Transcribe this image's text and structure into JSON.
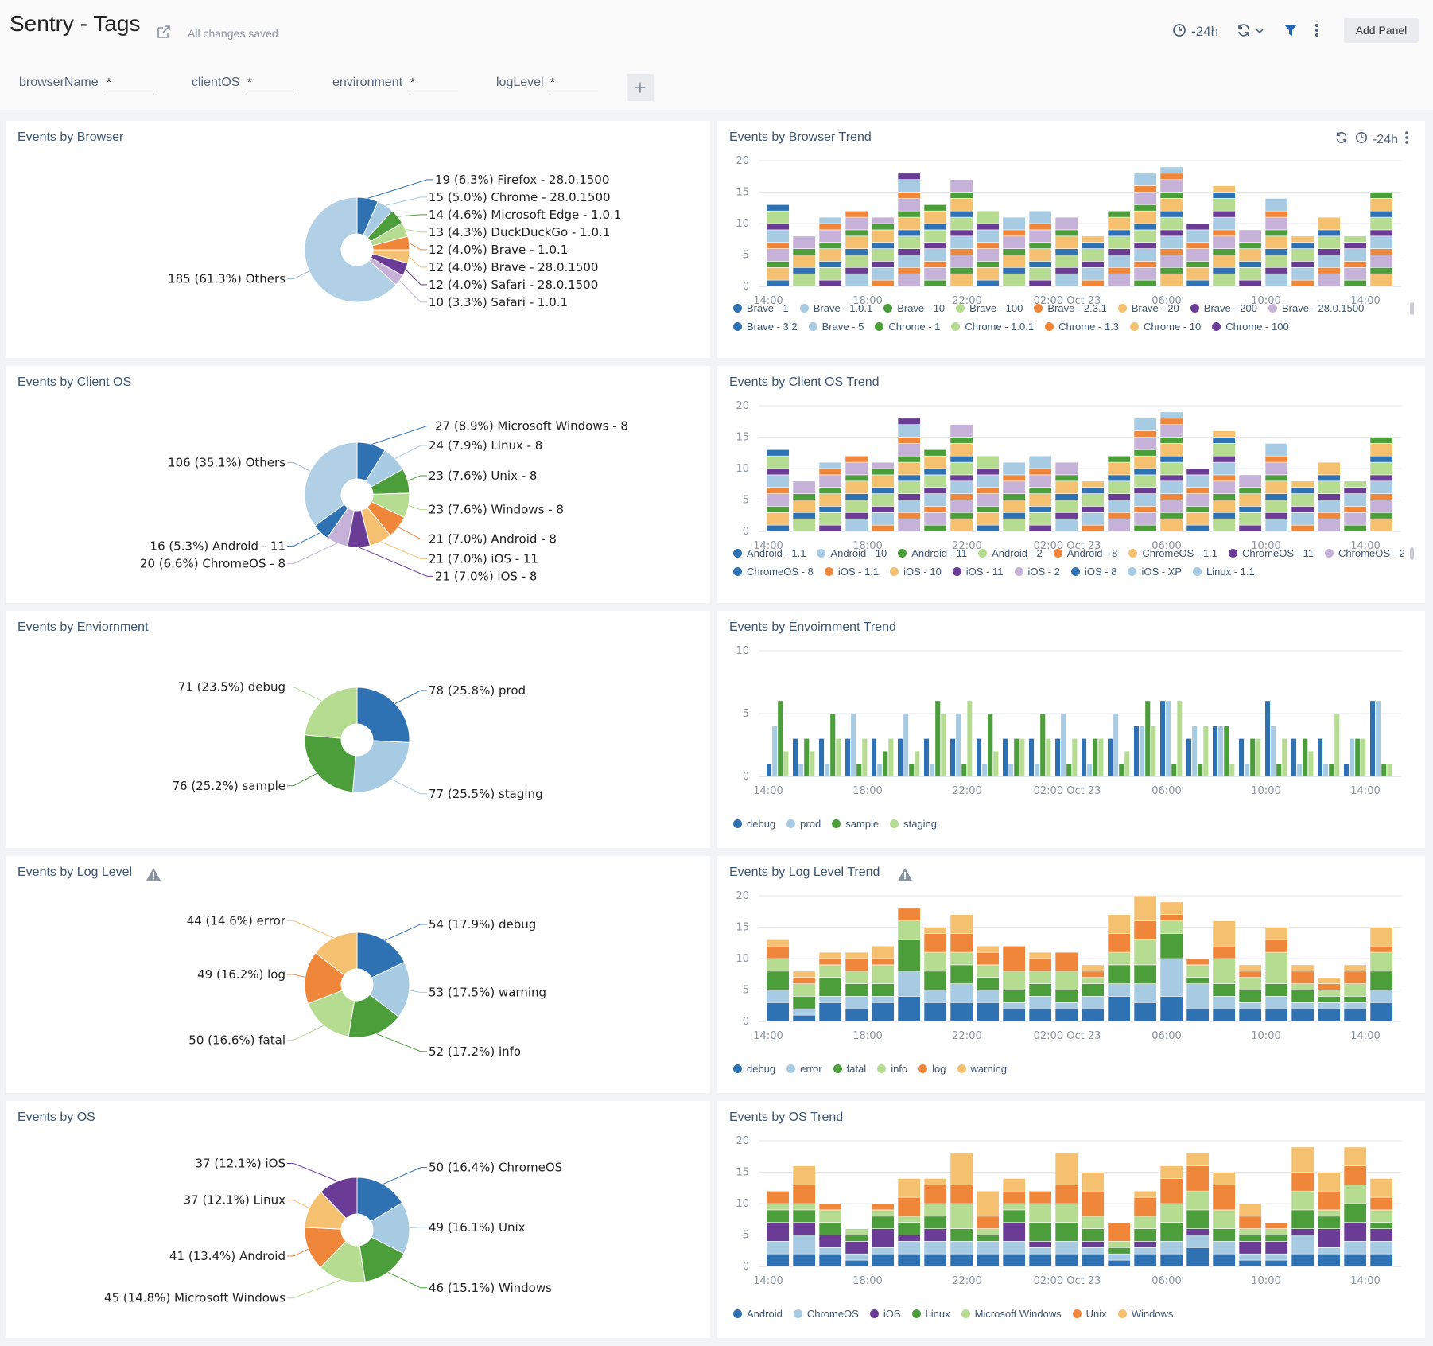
{
  "header": {
    "title": "Sentry - Tags",
    "saved_status": "All changes saved",
    "time_range": "-24h",
    "add_panel_label": "Add Panel",
    "icons": [
      "share-icon",
      "clock-icon",
      "refresh-icon",
      "chevron-down-icon",
      "filter-icon",
      "more-vertical-icon"
    ]
  },
  "filters": [
    {
      "label": "browserName",
      "value": "*"
    },
    {
      "label": "clientOS",
      "value": "*"
    },
    {
      "label": "environment",
      "value": "*"
    },
    {
      "label": "logLevel",
      "value": "*"
    }
  ],
  "colors": {
    "dark_blue": "#2f72b4",
    "light_blue": "#a7cbe3",
    "dark_green": "#4c9e3a",
    "light_green": "#b5dc91",
    "orange": "#f0863a",
    "light_orange": "#f5c070",
    "purple": "#6a3c96",
    "lilac": "#c6b1d8"
  },
  "panels": {
    "browser": {
      "title": "Events by Browser"
    },
    "browser_trend": {
      "title": "Events by Browser Trend",
      "time_range": "-24h"
    },
    "client_os": {
      "title": "Events by Client OS"
    },
    "client_os_trend": {
      "title": "Events by Client OS Trend"
    },
    "environment": {
      "title": "Events by Enviornment"
    },
    "environment_trend": {
      "title": "Events by Envoirnment Trend"
    },
    "log_level": {
      "title": "Events by Log Level"
    },
    "log_level_trend": {
      "title": "Events by Log Level Trend"
    },
    "os": {
      "title": "Events by OS"
    },
    "os_trend": {
      "title": "Events by OS Trend"
    }
  },
  "chart_data": [
    {
      "id": "browser_pie",
      "type": "pie",
      "donut": true,
      "slices": [
        {
          "label": "19 (6.3%) Firefox - 28.0.1500",
          "value": 19,
          "color": "#2f72b4"
        },
        {
          "label": "15 (5.0%) Chrome - 28.0.1500",
          "value": 15,
          "color": "#a7cbe3"
        },
        {
          "label": "14 (4.6%) Microsoft Edge - 1.0.1",
          "value": 14,
          "color": "#4c9e3a"
        },
        {
          "label": "13 (4.3%) DuckDuckGo - 1.0.1",
          "value": 13,
          "color": "#b5dc91"
        },
        {
          "label": "12 (4.0%) Brave - 1.0.1",
          "value": 12,
          "color": "#f0863a"
        },
        {
          "label": "12 (4.0%) Brave - 28.0.1500",
          "value": 12,
          "color": "#f5c070"
        },
        {
          "label": "12 (4.0%) Safari - 28.0.1500",
          "value": 12,
          "color": "#6a3c96"
        },
        {
          "label": "10 (3.3%) Safari - 1.0.1",
          "value": 10,
          "color": "#c6b1d8"
        },
        {
          "label": "185 (61.3%) Others",
          "value": 185,
          "color": "#b1d0e6"
        }
      ]
    },
    {
      "id": "client_os_pie",
      "type": "pie",
      "donut": true,
      "slices": [
        {
          "label": "27 (8.9%) Microsoft Windows - 8",
          "value": 27,
          "color": "#2f72b4"
        },
        {
          "label": "24 (7.9%) Linux - 8",
          "value": 24,
          "color": "#a7cbe3"
        },
        {
          "label": "23 (7.6%) Unix - 8",
          "value": 23,
          "color": "#4c9e3a"
        },
        {
          "label": "23 (7.6%) Windows - 8",
          "value": 23,
          "color": "#b5dc91"
        },
        {
          "label": "21 (7.0%) Android - 8",
          "value": 21,
          "color": "#f0863a"
        },
        {
          "label": "21 (7.0%) iOS - 11",
          "value": 21,
          "color": "#f5c070"
        },
        {
          "label": "21 (7.0%) iOS - 8",
          "value": 21,
          "color": "#6a3c96"
        },
        {
          "label": "20 (6.6%) ChromeOS - 8",
          "value": 20,
          "color": "#c6b1d8"
        },
        {
          "label": "16 (5.3%) Android - 11",
          "value": 16,
          "color": "#2f72b4"
        },
        {
          "label": "106 (35.1%) Others",
          "value": 106,
          "color": "#b1d0e6"
        }
      ]
    },
    {
      "id": "environment_pie",
      "type": "pie",
      "donut": true,
      "slices": [
        {
          "label": "78 (25.8%) prod",
          "value": 78,
          "color": "#2f72b4"
        },
        {
          "label": "77 (25.5%) staging",
          "value": 77,
          "color": "#a7cbe3"
        },
        {
          "label": "76 (25.2%) sample",
          "value": 76,
          "color": "#4c9e3a"
        },
        {
          "label": "71 (23.5%) debug",
          "value": 71,
          "color": "#b5dc91"
        }
      ]
    },
    {
      "id": "log_level_pie",
      "type": "pie",
      "donut": true,
      "slices": [
        {
          "label": "54 (17.9%) debug",
          "value": 54,
          "color": "#2f72b4"
        },
        {
          "label": "53 (17.5%) warning",
          "value": 53,
          "color": "#a7cbe3"
        },
        {
          "label": "52 (17.2%) info",
          "value": 52,
          "color": "#4c9e3a"
        },
        {
          "label": "50 (16.6%) fatal",
          "value": 50,
          "color": "#b5dc91"
        },
        {
          "label": "49 (16.2%) log",
          "value": 49,
          "color": "#f0863a"
        },
        {
          "label": "44 (14.6%) error",
          "value": 44,
          "color": "#f5c070"
        }
      ]
    },
    {
      "id": "os_pie",
      "type": "pie",
      "donut": true,
      "slices": [
        {
          "label": "50 (16.4%) ChromeOS",
          "value": 50,
          "color": "#2f72b4"
        },
        {
          "label": "49 (16.1%) Unix",
          "value": 49,
          "color": "#a7cbe3"
        },
        {
          "label": "46 (15.1%) Windows",
          "value": 46,
          "color": "#4c9e3a"
        },
        {
          "label": "45 (14.8%) Microsoft Windows",
          "value": 45,
          "color": "#b5dc91"
        },
        {
          "label": "41 (13.4%) Android",
          "value": 41,
          "color": "#f0863a"
        },
        {
          "label": "37 (12.1%) Linux",
          "value": 37,
          "color": "#f5c070"
        },
        {
          "label": "37 (12.1%) iOS",
          "value": 37,
          "color": "#6a3c96"
        }
      ]
    },
    {
      "id": "browser_trend",
      "type": "bar",
      "stacked": true,
      "x_ticks": [
        "14:00",
        "18:00",
        "22:00",
        "02:00 Oct 23",
        "06:00",
        "10:00",
        "14:00"
      ],
      "y_ticks": [
        0,
        5,
        10,
        15,
        20
      ],
      "ylim": [
        0,
        20
      ],
      "totals": [
        13,
        8,
        11,
        12,
        11,
        18,
        13,
        17,
        12,
        11,
        12,
        11,
        8,
        12,
        18,
        19,
        10,
        16,
        9,
        14,
        8,
        11,
        8,
        15
      ],
      "legend": [
        {
          "name": "Brave - 1",
          "color": "#2f72b4"
        },
        {
          "name": "Brave - 1.0.1",
          "color": "#a7cbe3"
        },
        {
          "name": "Brave - 10",
          "color": "#4c9e3a"
        },
        {
          "name": "Brave - 100",
          "color": "#b5dc91"
        },
        {
          "name": "Brave - 2.3.1",
          "color": "#f0863a"
        },
        {
          "name": "Brave - 20",
          "color": "#f5c070"
        },
        {
          "name": "Brave - 200",
          "color": "#6a3c96"
        },
        {
          "name": "Brave - 28.0.1500",
          "color": "#c6b1d8"
        },
        {
          "name": "Brave - 3.2",
          "color": "#2f72b4"
        },
        {
          "name": "Brave - 5",
          "color": "#a7cbe3"
        },
        {
          "name": "Chrome - 1",
          "color": "#4c9e3a"
        },
        {
          "name": "Chrome - 1.0.1",
          "color": "#b5dc91"
        },
        {
          "name": "Chrome - 1.3",
          "color": "#f0863a"
        },
        {
          "name": "Chrome - 10",
          "color": "#f5c070"
        },
        {
          "name": "Chrome - 100",
          "color": "#6a3c96"
        }
      ]
    },
    {
      "id": "client_os_trend",
      "type": "bar",
      "stacked": true,
      "x_ticks": [
        "14:00",
        "18:00",
        "22:00",
        "02:00 Oct 23",
        "06:00",
        "10:00",
        "14:00"
      ],
      "y_ticks": [
        0,
        5,
        10,
        15,
        20
      ],
      "ylim": [
        0,
        20
      ],
      "totals": [
        13,
        8,
        11,
        12,
        11,
        18,
        13,
        17,
        12,
        11,
        12,
        11,
        8,
        12,
        18,
        19,
        10,
        16,
        9,
        14,
        8,
        11,
        8,
        15
      ],
      "legend": [
        {
          "name": "Android - 1.1",
          "color": "#2f72b4"
        },
        {
          "name": "Android - 10",
          "color": "#a7cbe3"
        },
        {
          "name": "Android - 11",
          "color": "#4c9e3a"
        },
        {
          "name": "Android - 2",
          "color": "#b5dc91"
        },
        {
          "name": "Android - 8",
          "color": "#f0863a"
        },
        {
          "name": "ChromeOS - 1.1",
          "color": "#f5c070"
        },
        {
          "name": "ChromeOS - 11",
          "color": "#6a3c96"
        },
        {
          "name": "ChromeOS - 2",
          "color": "#c6b1d8"
        },
        {
          "name": "ChromeOS - 8",
          "color": "#2f72b4"
        },
        {
          "name": "iOS - 1.1",
          "color": "#f0863a"
        },
        {
          "name": "iOS - 10",
          "color": "#f5c070"
        },
        {
          "name": "iOS - 11",
          "color": "#6a3c96"
        },
        {
          "name": "iOS - 2",
          "color": "#c6b1d8"
        },
        {
          "name": "iOS - 8",
          "color": "#2f72b4"
        },
        {
          "name": "iOS - XP",
          "color": "#a7cbe3"
        },
        {
          "name": "Linux - 1.1",
          "color": "#a7cbe3"
        }
      ]
    },
    {
      "id": "environment_trend",
      "type": "bar",
      "stacked": false,
      "x_ticks": [
        "14:00",
        "18:00",
        "22:00",
        "02:00 Oct 23",
        "06:00",
        "10:00",
        "14:00"
      ],
      "y_ticks": [
        0,
        5,
        10
      ],
      "ylim": [
        0,
        10
      ],
      "series": [
        {
          "name": "debug",
          "color": "#2f72b4"
        },
        {
          "name": "prod",
          "color": "#a7cbe3"
        },
        {
          "name": "sample",
          "color": "#4c9e3a"
        },
        {
          "name": "staging",
          "color": "#b5dc91"
        }
      ],
      "values": [
        [
          1,
          4,
          6,
          2
        ],
        [
          3,
          1,
          3,
          2
        ],
        [
          3,
          1,
          5,
          3
        ],
        [
          3,
          5,
          1,
          3
        ],
        [
          3,
          1,
          2,
          3
        ],
        [
          3,
          5,
          1,
          2
        ],
        [
          3,
          1,
          6,
          5
        ],
        [
          3,
          5,
          1,
          6
        ],
        [
          3,
          1,
          5,
          2
        ],
        [
          3,
          1,
          3,
          3
        ],
        [
          3,
          1,
          5,
          3
        ],
        [
          3,
          5,
          1,
          3
        ],
        [
          3,
          1,
          3,
          3
        ],
        [
          3,
          5,
          1,
          2
        ],
        [
          4,
          4,
          6,
          4
        ],
        [
          6,
          6,
          1,
          6
        ],
        [
          3,
          4,
          1,
          4
        ],
        [
          4,
          4,
          4,
          1
        ],
        [
          3,
          1,
          3,
          3
        ],
        [
          6,
          4,
          1,
          3
        ],
        [
          3,
          1,
          3,
          2
        ],
        [
          3,
          1,
          1,
          5
        ],
        [
          1,
          3,
          3,
          3
        ],
        [
          6,
          6,
          1,
          1
        ]
      ]
    },
    {
      "id": "log_level_trend",
      "type": "bar",
      "stacked": true,
      "x_ticks": [
        "14:00",
        "18:00",
        "22:00",
        "02:00 Oct 23",
        "06:00",
        "10:00",
        "14:00"
      ],
      "y_ticks": [
        0,
        5,
        10,
        15,
        20
      ],
      "ylim": [
        0,
        20
      ],
      "series": [
        {
          "name": "debug",
          "color": "#2f72b4"
        },
        {
          "name": "error",
          "color": "#a7cbe3"
        },
        {
          "name": "fatal",
          "color": "#4c9e3a"
        },
        {
          "name": "info",
          "color": "#b5dc91"
        },
        {
          "name": "log",
          "color": "#f0863a"
        },
        {
          "name": "warning",
          "color": "#f5c070"
        }
      ],
      "values": [
        [
          3,
          2,
          3,
          2,
          2,
          1
        ],
        [
          1,
          1,
          2,
          2,
          1,
          1
        ],
        [
          3,
          1,
          3,
          2,
          1,
          1
        ],
        [
          2,
          2,
          2,
          2,
          2,
          1
        ],
        [
          3,
          1,
          2,
          3,
          1,
          2
        ],
        [
          4,
          4,
          5,
          3,
          2,
          0
        ],
        [
          3,
          2,
          3,
          3,
          3,
          1
        ],
        [
          3,
          3,
          3,
          2,
          3,
          3
        ],
        [
          3,
          2,
          2,
          2,
          2,
          1
        ],
        [
          2,
          1,
          2,
          3,
          4,
          0
        ],
        [
          2,
          2,
          2,
          2,
          2,
          1
        ],
        [
          2,
          1,
          2,
          3,
          3,
          0
        ],
        [
          2,
          2,
          2,
          1,
          1,
          1
        ],
        [
          4,
          2,
          3,
          2,
          3,
          3
        ],
        [
          3,
          3,
          3,
          4,
          3,
          4
        ],
        [
          4,
          6,
          4,
          2,
          1,
          2
        ],
        [
          2,
          4,
          1,
          2,
          1,
          0
        ],
        [
          2,
          2,
          2,
          4,
          2,
          4
        ],
        [
          2,
          1,
          2,
          2,
          1,
          1
        ],
        [
          2,
          2,
          2,
          5,
          2,
          2
        ],
        [
          2,
          1,
          2,
          1,
          2,
          1
        ],
        [
          2,
          1,
          1,
          1,
          1,
          1
        ],
        [
          2,
          1,
          1,
          2,
          2,
          1
        ],
        [
          3,
          2,
          3,
          3,
          1,
          3
        ]
      ]
    },
    {
      "id": "os_trend",
      "type": "bar",
      "stacked": true,
      "x_ticks": [
        "14:00",
        "18:00",
        "22:00",
        "02:00 Oct 23",
        "06:00",
        "10:00",
        "14:00"
      ],
      "y_ticks": [
        0,
        5,
        10,
        15,
        20
      ],
      "ylim": [
        0,
        20
      ],
      "series": [
        {
          "name": "Android",
          "color": "#2f72b4"
        },
        {
          "name": "ChromeOS",
          "color": "#a7cbe3"
        },
        {
          "name": "iOS",
          "color": "#6a3c96"
        },
        {
          "name": "Linux",
          "color": "#4c9e3a"
        },
        {
          "name": "Microsoft Windows",
          "color": "#b5dc91"
        },
        {
          "name": "Unix",
          "color": "#f0863a"
        },
        {
          "name": "Windows",
          "color": "#f5c070"
        }
      ],
      "values": [
        [
          2,
          2,
          3,
          2,
          1,
          2,
          0
        ],
        [
          2,
          3,
          2,
          2,
          1,
          3,
          3
        ],
        [
          2,
          1,
          2,
          2,
          2,
          1,
          0
        ],
        [
          1,
          1,
          2,
          1,
          1,
          0,
          0
        ],
        [
          2,
          1,
          3,
          2,
          1,
          1,
          0
        ],
        [
          2,
          2,
          1,
          2,
          1,
          3,
          3
        ],
        [
          2,
          2,
          2,
          2,
          2,
          3,
          1
        ],
        [
          2,
          2,
          0,
          2,
          4,
          3,
          5
        ],
        [
          2,
          2,
          0,
          1,
          1,
          2,
          4
        ],
        [
          2,
          2,
          3,
          2,
          1,
          2,
          2
        ],
        [
          2,
          1,
          1,
          3,
          3,
          2,
          0
        ],
        [
          2,
          2,
          0,
          3,
          3,
          3,
          5
        ],
        [
          2,
          1,
          1,
          2,
          2,
          4,
          3
        ],
        [
          1,
          1,
          0,
          1,
          1,
          3,
          0
        ],
        [
          2,
          1,
          1,
          2,
          2,
          3,
          1
        ],
        [
          2,
          2,
          0,
          3,
          3,
          4,
          2
        ],
        [
          3,
          2,
          1,
          3,
          3,
          4,
          2
        ],
        [
          2,
          2,
          0,
          2,
          3,
          4,
          2
        ],
        [
          1,
          1,
          2,
          1,
          1,
          2,
          2
        ],
        [
          1,
          1,
          2,
          1,
          1,
          1,
          0
        ],
        [
          2,
          3,
          1,
          3,
          3,
          3,
          4
        ],
        [
          2,
          1,
          3,
          2,
          1,
          3,
          3
        ],
        [
          2,
          2,
          3,
          3,
          3,
          3,
          3
        ],
        [
          2,
          2,
          2,
          1,
          2,
          2,
          3
        ]
      ]
    }
  ],
  "legends": {
    "environment": [
      "debug",
      "prod",
      "sample",
      "staging"
    ],
    "log_level": [
      "debug",
      "error",
      "fatal",
      "info",
      "log",
      "warning"
    ],
    "os": [
      "Android",
      "ChromeOS",
      "iOS",
      "Linux",
      "Microsoft Windows",
      "Unix",
      "Windows"
    ]
  }
}
